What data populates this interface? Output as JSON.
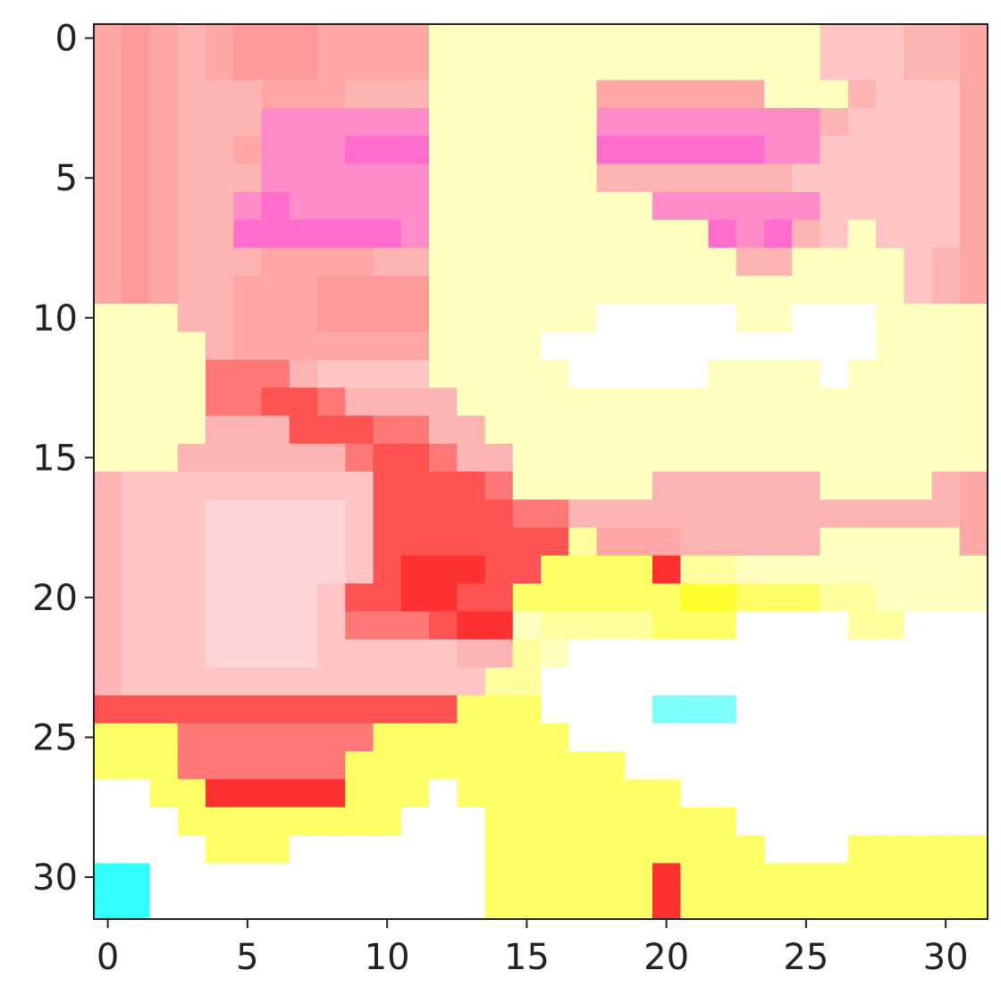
{
  "chart_data": {
    "type": "heatmap",
    "title": "",
    "xlabel": "",
    "ylabel": "",
    "rows": 32,
    "cols": 32,
    "xlim": [
      -0.5,
      31.5
    ],
    "ylim": [
      31.5,
      -0.5
    ],
    "x_ticks": [
      0,
      5,
      10,
      15,
      20,
      25,
      30
    ],
    "y_ticks": [
      0,
      5,
      10,
      15,
      20,
      25,
      30
    ],
    "x_tick_labels": [
      "0",
      "5",
      "10",
      "15",
      "20",
      "25",
      "30"
    ],
    "y_tick_labels": [
      "0",
      "5",
      "10",
      "15",
      "20",
      "25",
      "30"
    ],
    "grid": false,
    "palette": {
      "A": "#ff9a9a",
      "B": "#ffa6a6",
      "C": "#ffb4b4",
      "D": "#ffc4c4",
      "E": "#ffd4d4",
      "F": "#ff8cc8",
      "G": "#ff6ccc",
      "H": "#ffffc0",
      "I": "#ffffa0",
      "J": "#ffff66",
      "K": "#ffff30",
      "L": "#ff3030",
      "M": "#ff5252",
      "N": "#ff7878",
      "W": "#ffffff",
      "T": "#7ffcfc",
      "U": "#33ffff"
    },
    "values": [
      "BABCBAAABBBBHHHHHHHHHHHHHHDDDCCB",
      "BABCBAAABBBBHHHHHHHHHHHHHHDDDCCB",
      "BABCCCBBBCCCHHHHHHBBBBBBHHHCDDDB",
      "BABCCCFFFFFFHHHHHHFFFFFFFFCDDDDB",
      "BABCCBFFFGGGHHHHHHGGGGGGFFDDDDDB",
      "BABCCCFFFFFFHHHHHHCCCCCCCDDDDDDB",
      "BABCCFGFFFFFHHHHHHHHFFFFFFDDDDDB",
      "BABCCGGGGGGFHHHHHHHHHHGFGCDHDDDB",
      "BABCCCBBBBCCHHHHHHHHHHHCCHHHHDCB",
      "BABCCBBBAAAAHHHHHHHHHHHHHHHHHDCB",
      "HHHCCBBBAAAAHHHHHHWWWWWHHWWWHHHH",
      "HHHHCBBBBBBBHHHHWWWWWWWWWWWWHHHH",
      "HHHHNNNCDDDDHHHHHWWWWWHHHHWHHHHH",
      "HHHHNNMMNCCCCHHHHHHHHHHHHHHHHHHH",
      "HHHHCCCMMMNNCCHHHHHHHHHHHHHHHHHH",
      "HHHCCCCCCNMMNCCHHHHHHHHHHHHHHHHH",
      "CDDDDDDDDDMMMMNHHHHHCCCCCCHHHHCB",
      "CDDDEEEEEDMMMMMNNCCCCCCCCCCCCCCB",
      "CDDDEEEEEDMMMMMMMIBBBCCCCCHHHHHB",
      "CDDDEEEEEDMLLLMMJJJJLIIHHHHHHHHH",
      "CDDDEEEEDMMLLMMJJJJJJKKJJJIIHHHH",
      "CDDDEEEEDNNNMLLHIIIIJJJWWWWIIWWW",
      "CDDDEEEEDDDDDCCIHWWWWWWWWWWWWWWW",
      "CDDDDDDDDDDDDDIIWWWWWWWWWWWWWWWW",
      "MMMMMMMMMMMMMJJJWWWWTTTWWWWWWWWW",
      "JJJNNNNNNNJJJJJJJWWWWWWWWWWWWWWW",
      "JJJNNNNNNJJJJJJJJJJWWWWWWWWWWWWW",
      "WWJJLLLLLJJJWJJJJJJJJWWWWWWWWWWW",
      "WWWJJJJJJJJWWWJJJJJJJJJWWWWWWWWW",
      "WWWWJJJWWWWWWWJJJJJJJJJJWWWJJJJJ",
      "UUWWWWWWWWWWWWJJJJJJLJJJJJJJJJJJ",
      "UUWWWWWWWWWWWWJJJJJJLJJJJJJJJJJJ"
    ]
  }
}
